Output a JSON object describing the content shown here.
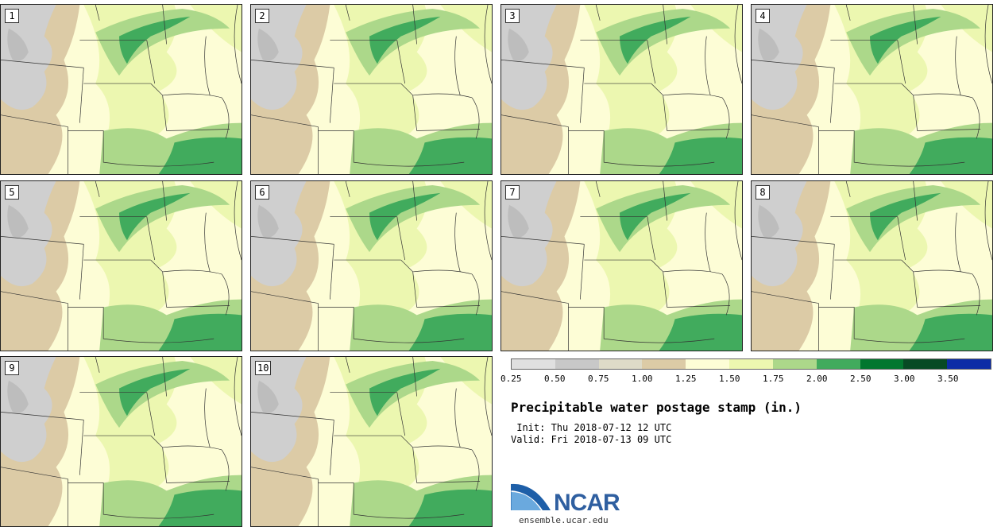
{
  "panels": [
    {
      "label": "1"
    },
    {
      "label": "2"
    },
    {
      "label": "3"
    },
    {
      "label": "4"
    },
    {
      "label": "5"
    },
    {
      "label": "6"
    },
    {
      "label": "7"
    },
    {
      "label": "8"
    },
    {
      "label": "9"
    },
    {
      "label": "10"
    }
  ],
  "legend": {
    "ticks": [
      "0.25",
      "0.50",
      "0.75",
      "1.00",
      "1.25",
      "1.50",
      "1.75",
      "2.00",
      "2.50",
      "3.00",
      "3.50"
    ],
    "colors": [
      "#e0e0e0",
      "#c8c8c8",
      "#dedbc8",
      "#dccba6",
      "#fdfdd6",
      "#ecf7b0",
      "#acd88a",
      "#41ab5d",
      "#02772f",
      "#074a24",
      "#0c2ca6"
    ]
  },
  "title": "Precipitable water postage stamp (in.)",
  "init": " Init: Thu 2018-07-12 12 UTC",
  "valid": "Valid: Fri 2018-07-13 09 UTC",
  "logo": {
    "name": "NCAR",
    "url": "ensemble.ucar.edu"
  }
}
